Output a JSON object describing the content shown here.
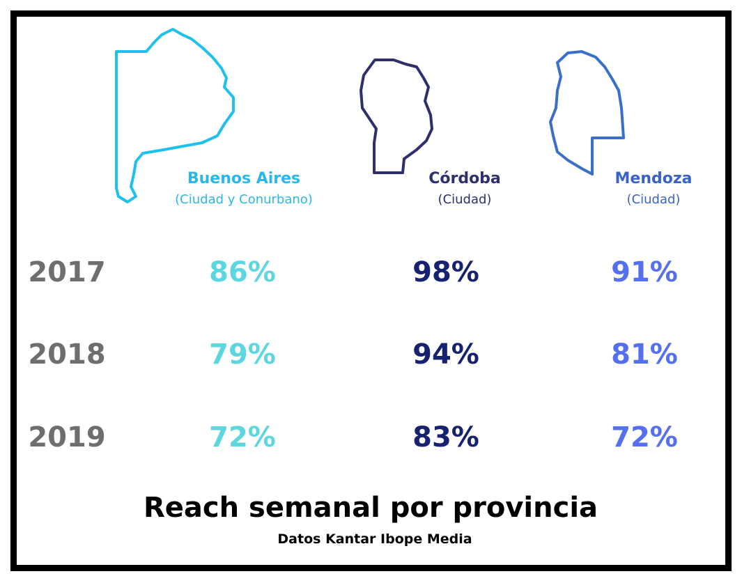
{
  "provinces": [
    {
      "name": "Buenos Aires",
      "note": "(Ciudad y Conurbano)"
    },
    {
      "name": "Córdoba",
      "note": "(Ciudad)"
    },
    {
      "name": "Mendoza",
      "note": "(Ciudad)"
    }
  ],
  "table": {
    "rows": [
      [
        "2017",
        "86%",
        "98%",
        "91%"
      ],
      [
        "2018",
        "79%",
        "94%",
        "81%"
      ],
      [
        "2019",
        "72%",
        "83%",
        "72%"
      ]
    ]
  },
  "footer": {
    "title": "Reach semanal por provincia",
    "source": "Datos Kantar Ibope Media"
  }
}
